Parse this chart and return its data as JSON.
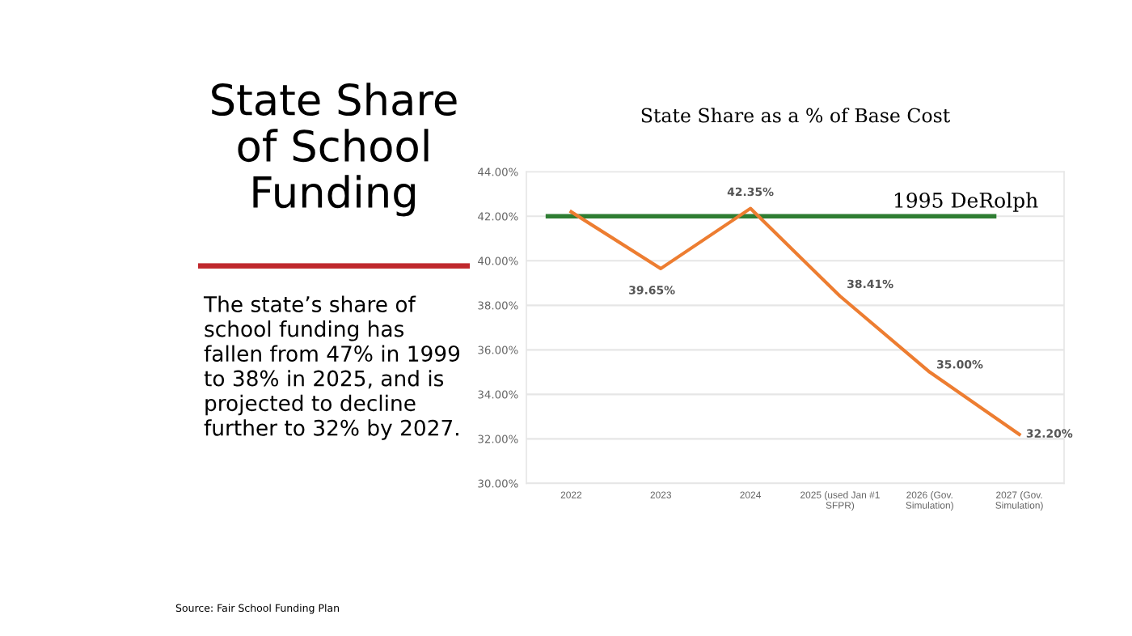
{
  "chart_data": {
    "type": "line",
    "title": "State Share as a % of Base Cost",
    "categories": [
      "2022",
      "2023",
      "2024",
      "2025 (used Jan #1\nSFPR)",
      "2026 (Gov.\nSimulation)",
      "2027 (Gov.\nSimulation)"
    ],
    "series": [
      {
        "color": "#ed7d31",
        "values": [
          42.2,
          39.65,
          42.35,
          38.41,
          35.0,
          32.2
        ],
        "value_labels": [
          null,
          "39.65%",
          "42.35%",
          "38.41%",
          "35.00%",
          "32.20%"
        ]
      }
    ],
    "ylim": [
      30,
      44
    ],
    "yticks": [
      {
        "value": 30,
        "label": "30.00%"
      },
      {
        "value": 32,
        "label": "32.00%"
      },
      {
        "value": 34,
        "label": "34.00%"
      },
      {
        "value": 36,
        "label": "36.00%"
      },
      {
        "value": 38,
        "label": "38.00%"
      },
      {
        "value": 40,
        "label": "40.00%"
      },
      {
        "value": 42,
        "label": "42.00%"
      },
      {
        "value": 44,
        "label": "44.00%"
      }
    ],
    "grid": "y",
    "marker": "none",
    "line_style": "solid",
    "legend": false,
    "ref_lines": [
      {
        "axis": "y",
        "value": 42,
        "label": "1995 DeRolph",
        "color": "#2e7d32"
      }
    ],
    "annotations": [
      "State Share\nof School\nFunding",
      "The state’s share of\nschool funding has\nfallen from 47% in 1999\nto 38% in 2025, and is\nprojected to decline\nfurther to 32% by 2027.",
      "Source: Fair School Funding Plan"
    ]
  }
}
